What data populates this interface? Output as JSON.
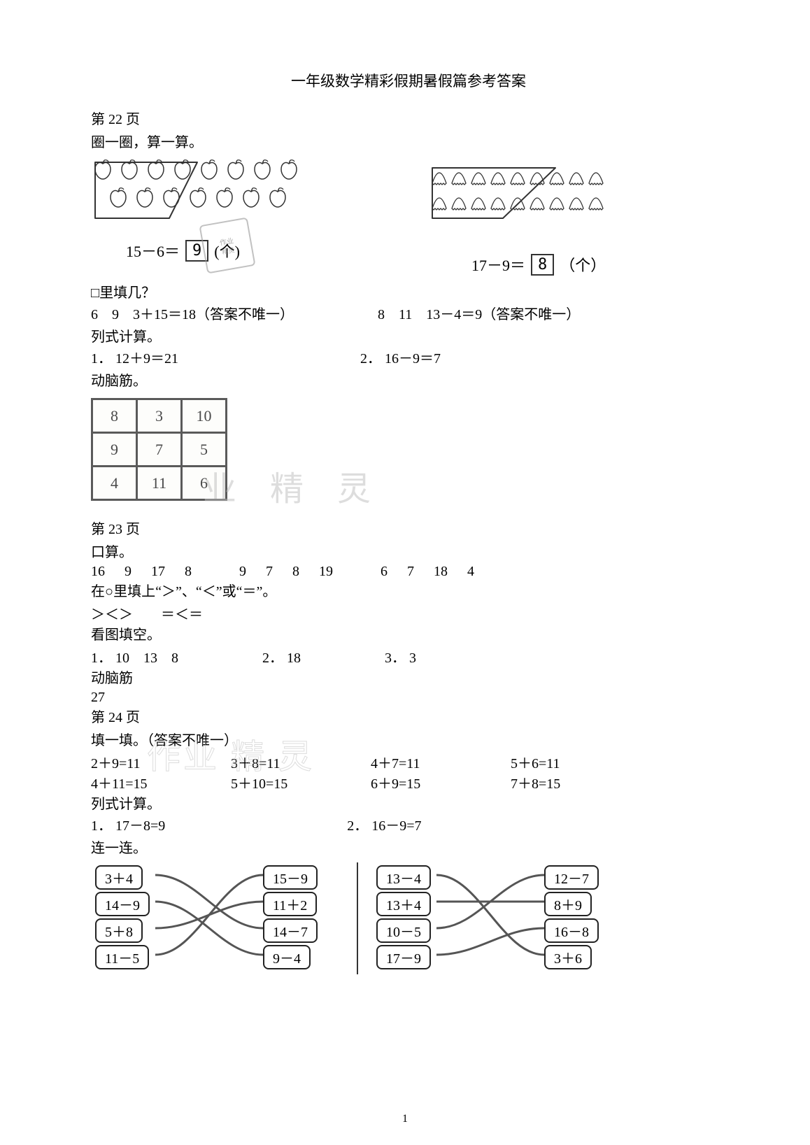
{
  "title": "一年级数学精彩假期暑假篇参考答案",
  "page22": {
    "header": "第 22 页",
    "circle_calc": "圈一圈，算一算。",
    "eq_left": {
      "lhs": "15－6＝",
      "ans": "9",
      "unit": "(个)"
    },
    "eq_right": {
      "lhs": "17－9＝",
      "ans": "8",
      "unit": "（个）"
    },
    "box_fill": "□里填几？",
    "box_fill_l": "6　9　3＋15＝18（答案不唯一）",
    "box_fill_r": "8　11　13－4＝9（答案不唯一）",
    "col_calc": "列式计算。",
    "cc1": "1．  12＋9＝21",
    "cc2": "2．  16－9＝7",
    "brain": "动脑筋。",
    "table": {
      "rows": [
        [
          "8",
          "3",
          "10"
        ],
        [
          "9",
          "7",
          "5"
        ],
        [
          "4",
          "11",
          "6"
        ]
      ],
      "border_color": "#5a5a5a",
      "cell_bg": "#fdfdfb",
      "text_color": "#4a4a4a",
      "fontsize": 22
    },
    "apple_frame": {
      "stroke": "#333",
      "stroke_width": 2
    },
    "shell_frame": {
      "stroke": "#333",
      "stroke_width": 2
    },
    "apple_count": {
      "row1": 8,
      "row2": 7
    },
    "shell_count": {
      "row1": 9,
      "row2": 9
    },
    "apple_circled": 6,
    "shell_circled": 9,
    "apple_shape": {
      "stroke": "#333",
      "fill": "#fff"
    },
    "shell_shape": {
      "stroke": "#333",
      "fill": "#fff"
    }
  },
  "page23": {
    "header": "第 23 页",
    "oral": "口算。",
    "oral_row": [
      "16",
      "9",
      "17",
      "8",
      "",
      "9",
      "7",
      "8",
      "19",
      "",
      "6",
      "7",
      "18",
      "4"
    ],
    "cmp_label": "在○里填上“＞”、“＜”或“＝”。",
    "cmp_ans": "＞＜＞　　＝＜＝",
    "pic_fill": "看图填空。",
    "pf1": "1．  10　13　8",
    "pf2": "2．  18",
    "pf3": "3．  3",
    "brain": "动脑筋",
    "brain_ans": "27"
  },
  "page24": {
    "header": "第 24 页",
    "fill": "填一填。（答案不唯一）",
    "fill_rows": [
      [
        "2＋9=11",
        "3＋8=11",
        "4＋7=11",
        "5＋6=11"
      ],
      [
        "4＋11=15",
        "5＋10=15",
        "6＋9=15",
        "7＋8=15"
      ]
    ],
    "col_calc": "列式计算。",
    "cc1": "1．  17－8=9",
    "cc2": "2．  16－9=7",
    "match": "连一连。",
    "left_set": {
      "left": [
        "3＋4",
        "14－9",
        "5＋8",
        "11－5"
      ],
      "right": [
        "15－9",
        "11＋2",
        "14－7",
        "9－4"
      ],
      "lines": [
        [
          0,
          2
        ],
        [
          1,
          3
        ],
        [
          2,
          1
        ],
        [
          3,
          0
        ]
      ],
      "box_border": "#222",
      "line_color": "#555",
      "line_width": 3
    },
    "right_set": {
      "left": [
        "13－4",
        "13＋4",
        "10－5",
        "17－9"
      ],
      "right": [
        "12－7",
        "8＋9",
        "16－8",
        "3＋6"
      ],
      "lines": [
        [
          0,
          3
        ],
        [
          1,
          1
        ],
        [
          2,
          0
        ],
        [
          3,
          2
        ]
      ],
      "box_border": "#222",
      "line_color": "#555",
      "line_width": 3
    }
  },
  "footer_page": "1",
  "watermarks": {
    "wm1": "业 精 灵",
    "wm2": "作业 精 灵",
    "stamp_top": "作业",
    "stamp_bot": "精灵"
  },
  "colors": {
    "text": "#000000",
    "bg": "#ffffff",
    "wm": "#bdbdbd",
    "table_border": "#5a5a5a"
  }
}
